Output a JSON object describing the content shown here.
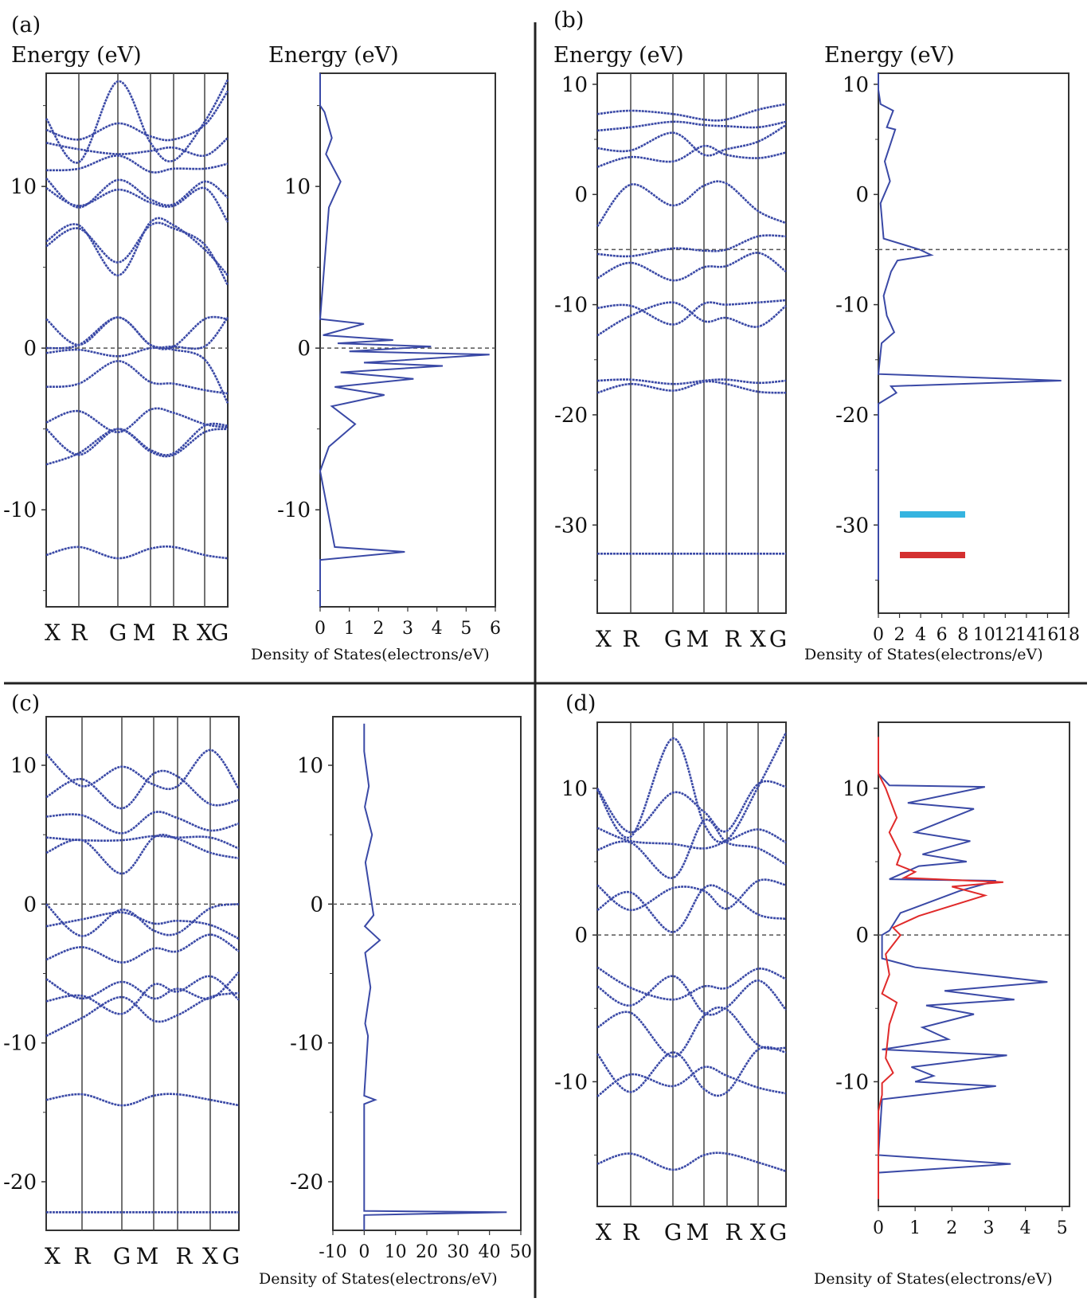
{
  "figure": {
    "panels": [
      "(a)",
      "(b)",
      "(c)",
      "(d)"
    ],
    "energy_label": "Energy (eV)",
    "dos_label": "Density of States(electrons/eV)",
    "kpath": [
      "X",
      "R",
      "G",
      "M",
      "R",
      "X",
      "G"
    ],
    "colors": {
      "band": "#3a49a6",
      "dos_red": "#e02a2a",
      "legend_cyan": "#35b4e0",
      "legend_red": "#d43030",
      "fermi": "#555555",
      "frame": "#333333"
    }
  },
  "chart_data": [
    {
      "id": "a-bands",
      "type": "line",
      "panel": "(a)",
      "ylabel": "Energy (eV)",
      "ylim": [
        -16,
        17
      ],
      "yticks": [
        10,
        0,
        -10
      ],
      "xticklabels": [
        "X",
        "R",
        "G",
        "M",
        "R",
        "X",
        "G"
      ],
      "fermi_level": 0,
      "series": [
        {
          "values": [
            -7.2,
            -6.5,
            -5.0,
            -6.4,
            -6.6,
            -5.2,
            -5.0
          ]
        },
        {
          "values": [
            -5.0,
            -6.6,
            -5.0,
            -6.3,
            -6.5,
            -4.8,
            -4.8
          ]
        },
        {
          "values": [
            -4.6,
            -3.9,
            -5.2,
            -3.8,
            -4.0,
            -4.7,
            -4.9
          ]
        },
        {
          "values": [
            -2.4,
            -2.2,
            -0.8,
            -2.1,
            -2.2,
            -2.6,
            -2.8
          ]
        },
        {
          "values": [
            -0.3,
            -0.1,
            -0.5,
            0.0,
            -0.1,
            -0.7,
            -3.4
          ]
        },
        {
          "values": [
            0.0,
            0.2,
            1.9,
            0.2,
            0.1,
            0.1,
            1.9
          ]
        },
        {
          "values": [
            1.8,
            0.2,
            1.9,
            0.2,
            0.1,
            1.8,
            1.8
          ]
        },
        {
          "values": [
            6.6,
            7.6,
            4.5,
            7.8,
            7.6,
            6.1,
            4.5
          ]
        },
        {
          "values": [
            6.3,
            7.4,
            5.3,
            7.6,
            7.4,
            6.4,
            3.9
          ]
        },
        {
          "values": [
            9.9,
            8.8,
            9.8,
            9.0,
            8.8,
            9.9,
            7.8
          ]
        },
        {
          "values": [
            10.5,
            8.7,
            10.4,
            9.2,
            8.9,
            10.3,
            9.3
          ]
        },
        {
          "values": [
            11.0,
            11.1,
            11.9,
            10.9,
            11.1,
            11.1,
            11.4
          ]
        },
        {
          "values": [
            12.7,
            12.3,
            12.0,
            12.2,
            12.4,
            11.9,
            13.0
          ]
        },
        {
          "values": [
            14.2,
            11.5,
            16.5,
            12.7,
            11.6,
            14.0,
            16.6
          ]
        },
        {
          "values": [
            13.5,
            12.9,
            13.9,
            13.1,
            12.9,
            13.8,
            15.9
          ]
        },
        {
          "values": [
            -12.8,
            -12.3,
            -13.0,
            -12.4,
            -12.3,
            -12.8,
            -13.0
          ]
        }
      ]
    },
    {
      "id": "a-dos",
      "type": "line",
      "panel": "(a)",
      "ylabel": "Energy (eV)",
      "xlabel": "Density of States(electrons/eV)",
      "ylim": [
        -16,
        17
      ],
      "yticks": [
        10,
        0,
        -10
      ],
      "xlim": [
        0,
        6
      ],
      "xticks": [
        0,
        1,
        2,
        3,
        4,
        5,
        6
      ],
      "fermi_level": 0,
      "x": [
        0,
        0,
        0.15,
        0.4,
        0.2,
        0.7,
        0.3,
        0.0,
        1.5,
        0.1,
        2.5,
        0.6,
        3.8,
        1.0,
        5.8,
        1.5,
        4.2,
        0.7,
        3.2,
        0.5,
        2.2,
        0.4,
        1.2,
        0.3,
        0.0,
        0.5,
        2.9,
        0.0,
        0.0
      ],
      "y": [
        17,
        15,
        14.6,
        13.0,
        12.0,
        10.3,
        8.7,
        1.8,
        1.5,
        0.8,
        0.5,
        0.3,
        0.1,
        -0.2,
        -0.4,
        -0.9,
        -1.1,
        -1.5,
        -1.9,
        -2.4,
        -2.9,
        -3.6,
        -4.7,
        -6.1,
        -7.6,
        -12.3,
        -12.6,
        -13.1,
        -16
      ]
    },
    {
      "id": "b-bands",
      "type": "line",
      "panel": "(b)",
      "ylabel": "Energy (eV)",
      "ylim": [
        -38,
        11
      ],
      "yticks": [
        10,
        0,
        -10,
        -20,
        -30
      ],
      "xticklabels": [
        "X",
        "R",
        "G",
        "M",
        "R",
        "X",
        "G"
      ],
      "fermi_level": -5,
      "series": [
        {
          "values": [
            -18.0,
            -17.2,
            -17.8,
            -17.0,
            -17.2,
            -17.9,
            -18.0
          ]
        },
        {
          "values": [
            -16.9,
            -16.8,
            -17.2,
            -16.9,
            -16.8,
            -17.1,
            -16.9
          ]
        },
        {
          "values": [
            -12.8,
            -11.0,
            -9.8,
            -11.5,
            -11.2,
            -12.0,
            -10.1
          ]
        },
        {
          "values": [
            -10.3,
            -10.1,
            -11.8,
            -9.9,
            -10.0,
            -9.8,
            -9.6
          ]
        },
        {
          "values": [
            -7.6,
            -6.2,
            -7.8,
            -6.6,
            -6.5,
            -5.3,
            -7.0
          ]
        },
        {
          "values": [
            -5.4,
            -5.6,
            -4.9,
            -5.1,
            -5.0,
            -3.8,
            -3.8
          ]
        },
        {
          "values": [
            -2.9,
            0.9,
            -1.0,
            0.8,
            1.0,
            -1.5,
            -2.6
          ]
        },
        {
          "values": [
            2.5,
            3.4,
            3.0,
            4.4,
            3.6,
            3.3,
            3.8
          ]
        },
        {
          "values": [
            4.2,
            4.0,
            5.6,
            3.6,
            4.1,
            4.8,
            6.3
          ]
        },
        {
          "values": [
            5.8,
            6.1,
            6.6,
            6.3,
            6.2,
            6.1,
            6.6
          ]
        },
        {
          "values": [
            7.3,
            7.6,
            7.3,
            6.8,
            6.8,
            7.7,
            8.2
          ]
        },
        {
          "values": [
            -32.6,
            -32.6,
            -32.6,
            -32.6,
            -32.6,
            -32.6,
            -32.6
          ]
        }
      ]
    },
    {
      "id": "b-dos",
      "type": "line",
      "panel": "(b)",
      "ylabel": "Energy (eV)",
      "xlabel": "Density of States(electrons/eV)",
      "ylim": [
        -38,
        11
      ],
      "yticks": [
        10,
        0,
        -10,
        -20,
        -30
      ],
      "xlim": [
        0,
        18
      ],
      "xticklabels": [
        "0",
        "2",
        "4",
        "6",
        "8",
        "10",
        "12",
        "14",
        "16",
        "18"
      ],
      "fermi_level": -5,
      "x": [
        0,
        0,
        0.2,
        1.4,
        0.8,
        1.6,
        0.6,
        1.1,
        0.2,
        0.5,
        3.9,
        5.0,
        1.8,
        1.2,
        0.5,
        0.8,
        1.5,
        0.3,
        0.0,
        17.3,
        1.2,
        1.7,
        0.0,
        0.0
      ],
      "y": [
        11,
        9.5,
        8.2,
        7.6,
        6.1,
        5.9,
        3.0,
        1.2,
        -0.8,
        -4.0,
        -5.0,
        -5.5,
        -6.0,
        -7.0,
        -9.2,
        -11.0,
        -12.5,
        -13.5,
        -16.3,
        -16.9,
        -17.4,
        -18.0,
        -19.0,
        -35.0
      ]
    },
    {
      "id": "c-bands",
      "type": "line",
      "panel": "(c)",
      "ylim": [
        -23.5,
        13.5
      ],
      "yticks": [
        10,
        0,
        -10,
        -20
      ],
      "xticklabels": [
        "X",
        "R",
        "G",
        "M",
        "R",
        "X",
        "G"
      ],
      "fermi_level": 0,
      "series": [
        {
          "values": [
            -9.5,
            -8.2,
            -6.7,
            -8.4,
            -8.0,
            -6.7,
            -6.4
          ]
        },
        {
          "values": [
            -7.0,
            -6.6,
            -7.9,
            -5.8,
            -6.3,
            -5.2,
            -6.9
          ]
        },
        {
          "values": [
            -5.4,
            -6.8,
            -5.6,
            -6.8,
            -6.1,
            -6.8,
            -4.9
          ]
        },
        {
          "values": [
            -4.0,
            -3.1,
            -4.2,
            -3.2,
            -3.4,
            -2.2,
            -3.4
          ]
        },
        {
          "values": [
            -1.6,
            -1.1,
            -0.6,
            -1.4,
            -1.2,
            -1.5,
            -2.5
          ]
        },
        {
          "values": [
            0.0,
            -2.3,
            -0.4,
            -1.9,
            -2.1,
            -0.3,
            0.0
          ]
        },
        {
          "values": [
            3.7,
            4.6,
            2.2,
            4.8,
            4.7,
            3.7,
            3.3
          ]
        },
        {
          "values": [
            4.8,
            4.6,
            4.6,
            4.9,
            4.8,
            4.8,
            4.0
          ]
        },
        {
          "values": [
            6.3,
            6.4,
            5.1,
            6.6,
            6.2,
            5.3,
            5.8
          ]
        },
        {
          "values": [
            7.7,
            9.0,
            6.9,
            9.4,
            9.2,
            7.2,
            7.5
          ]
        },
        {
          "values": [
            10.8,
            8.5,
            9.9,
            8.6,
            8.5,
            11.1,
            8.3
          ]
        },
        {
          "values": [
            -14.1,
            -13.7,
            -14.5,
            -13.8,
            -13.7,
            -14.1,
            -14.5
          ]
        },
        {
          "values": [
            -22.2,
            -22.2,
            -22.2,
            -22.2,
            -22.2,
            -22.2,
            -22.2
          ]
        }
      ]
    },
    {
      "id": "c-dos",
      "type": "line",
      "panel": "(c)",
      "xlabel": "Density of States(electrons/eV)",
      "ylim": [
        -23.5,
        13.5
      ],
      "yticks": [
        10,
        0,
        -10,
        -20
      ],
      "xlim": [
        -10,
        50
      ],
      "xticklabels": [
        "-10",
        "0",
        "10",
        "20",
        "30",
        "40",
        "50"
      ],
      "fermi_level": 0,
      "x": [
        0,
        0,
        1.5,
        0.2,
        2.5,
        0.4,
        3.0,
        0.2,
        5.0,
        0.3,
        2.0,
        0.3,
        1.2,
        0.0,
        3.5,
        0.0,
        0.0,
        45.5,
        0.0,
        0.0
      ],
      "y": [
        13.0,
        11.0,
        8.5,
        7.0,
        5.0,
        3.0,
        -0.8,
        -1.6,
        -2.6,
        -3.5,
        -6.0,
        -8.6,
        -9.5,
        -13.8,
        -14.1,
        -14.4,
        -22.1,
        -22.2,
        -22.4,
        -23.5
      ]
    },
    {
      "id": "d-bands",
      "type": "line",
      "panel": "(d)",
      "ylim": [
        -18.5,
        14.5
      ],
      "yticks": [
        10,
        0,
        -10
      ],
      "xticklabels": [
        "X",
        "R",
        "G",
        "M",
        "R",
        "X",
        "G"
      ],
      "fermi_level": 0,
      "series": [
        {
          "values": [
            -11.0,
            -9.5,
            -10.3,
            -9.0,
            -9.6,
            -10.4,
            -10.8
          ]
        },
        {
          "values": [
            -8.1,
            -10.7,
            -8.0,
            -10.5,
            -10.7,
            -7.8,
            -8.0
          ]
        },
        {
          "values": [
            -6.3,
            -5.3,
            -8.3,
            -5.5,
            -5.1,
            -7.5,
            -7.7
          ]
        },
        {
          "values": [
            -3.5,
            -4.8,
            -2.8,
            -5.3,
            -4.9,
            -3.1,
            -5.1
          ]
        },
        {
          "values": [
            -2.2,
            -3.6,
            -4.4,
            -3.5,
            -3.6,
            -2.3,
            -3.0
          ]
        },
        {
          "values": [
            1.7,
            2.9,
            0.2,
            3.2,
            2.9,
            1.4,
            1.1
          ]
        },
        {
          "values": [
            3.4,
            1.7,
            3.2,
            3.0,
            1.8,
            3.7,
            3.4
          ]
        },
        {
          "values": [
            5.8,
            6.3,
            3.9,
            7.8,
            6.3,
            5.9,
            4.8
          ]
        },
        {
          "values": [
            7.3,
            6.4,
            6.2,
            5.9,
            6.4,
            7.2,
            6.3
          ]
        },
        {
          "values": [
            9.9,
            6.7,
            13.4,
            7.6,
            6.5,
            10.1,
            13.8
          ]
        },
        {
          "values": [
            10.0,
            7.0,
            9.7,
            8.4,
            7.1,
            10.3,
            10.1
          ]
        },
        {
          "values": [
            -15.6,
            -14.9,
            -16.0,
            -15.0,
            -14.9,
            -15.5,
            -16.1
          ]
        }
      ]
    },
    {
      "id": "d-dos",
      "type": "line",
      "panel": "(d)",
      "xlabel": "Density of States(electrons/eV)",
      "ylim": [
        -18.5,
        14.5
      ],
      "yticks": [
        10,
        0,
        -10
      ],
      "xlim": [
        0,
        5.2
      ],
      "xticks": [
        0,
        1,
        2,
        3,
        4,
        5
      ],
      "fermi_level": 0,
      "series": [
        {
          "name": "",
          "color": "blue",
          "x": [
            0,
            0,
            0.3,
            2.9,
            0.8,
            2.6,
            1.0,
            2.5,
            1.2,
            2.4,
            1.1,
            0.3,
            3.2,
            2.2,
            0.6,
            0.3,
            0.1,
            0.1,
            1.0,
            4.6,
            1.8,
            3.7,
            1.3,
            2.6,
            1.2,
            1.9,
            0.1,
            3.5,
            0.9,
            1.5,
            1.0,
            3.2,
            0.1,
            0.0,
            3.6,
            0.0,
            0.0
          ],
          "y": [
            12.5,
            11.0,
            10.2,
            10.1,
            9.0,
            8.6,
            7.0,
            6.4,
            5.5,
            5.0,
            4.7,
            3.8,
            3.7,
            3.0,
            1.5,
            0.3,
            0.0,
            -1.6,
            -2.2,
            -3.2,
            -3.8,
            -4.4,
            -4.8,
            -5.4,
            -6.3,
            -7.1,
            -7.8,
            -8.2,
            -9.0,
            -9.6,
            -10.0,
            -10.3,
            -11.2,
            -15.0,
            -15.6,
            -16.2,
            -18.0
          ]
        },
        {
          "name": "",
          "color": "red",
          "x": [
            0,
            0,
            0.2,
            0.5,
            0.3,
            0.6,
            0.5,
            1.0,
            0.7,
            3.4,
            2.0,
            2.9,
            1.1,
            0.4,
            0.6,
            0.2,
            0.3,
            0.1,
            0.5,
            0.3,
            0.2,
            0.4,
            0.1,
            0.1,
            0.0,
            0.0
          ],
          "y": [
            13.5,
            11.0,
            10.0,
            8.0,
            7.0,
            5.5,
            4.8,
            4.3,
            3.9,
            3.6,
            3.3,
            2.7,
            1.3,
            0.5,
            0.0,
            -1.3,
            -2.7,
            -4.0,
            -4.6,
            -6.1,
            -8.4,
            -9.4,
            -10.1,
            -10.9,
            -12.0,
            -18.0
          ]
        }
      ]
    }
  ]
}
